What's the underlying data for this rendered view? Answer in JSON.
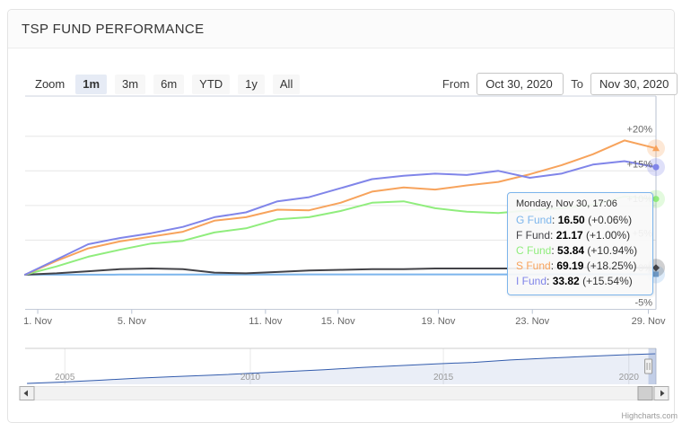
{
  "header": {
    "title": "TSP FUND PERFORMANCE"
  },
  "range_selector": {
    "zoom_label": "Zoom",
    "buttons": [
      {
        "label": "1m",
        "selected": true
      },
      {
        "label": "3m",
        "selected": false
      },
      {
        "label": "6m",
        "selected": false
      },
      {
        "label": "YTD",
        "selected": false
      },
      {
        "label": "1y",
        "selected": false
      },
      {
        "label": "All",
        "selected": false
      }
    ],
    "from_label": "From",
    "from_value": "Oct 30, 2020",
    "to_label": "To",
    "to_value": "Nov 30, 2020"
  },
  "tooltip": {
    "header": "Monday, Nov 30, 17:06",
    "rows": [
      {
        "label": "G Fund",
        "value": "16.50",
        "change": "(+0.06%)",
        "color": "#7cb5ec"
      },
      {
        "label": "F Fund",
        "value": "21.17",
        "change": "(+1.00%)",
        "color": "#434348"
      },
      {
        "label": "C Fund",
        "value": "53.84",
        "change": "(+10.94%)",
        "color": "#90ed7d"
      },
      {
        "label": "S Fund",
        "value": "69.19",
        "change": "(+18.25%)",
        "color": "#f7a35c"
      },
      {
        "label": "I Fund",
        "value": "33.82",
        "change": "(+15.54%)",
        "color": "#8085e9"
      }
    ]
  },
  "chart_data": {
    "type": "line",
    "title": "TSP FUND PERFORMANCE",
    "xlabel": "",
    "ylabel": "",
    "unit": "% change from Oct 30, 2020",
    "grid": true,
    "legend": "none (values shown in tooltip)",
    "ylim": [
      -5,
      25.8
    ],
    "x": [
      "Oct 30",
      "Nov 2",
      "Nov 3",
      "Nov 4",
      "Nov 5",
      "Nov 6",
      "Nov 9",
      "Nov 10",
      "Nov 11",
      "Nov 12",
      "Nov 13",
      "Nov 16",
      "Nov 17",
      "Nov 18",
      "Nov 19",
      "Nov 20",
      "Nov 23",
      "Nov 24",
      "Nov 25",
      "Nov 27",
      "Nov 30"
    ],
    "series": [
      {
        "name": "G Fund",
        "color": "#7cb5ec",
        "marker": "square",
        "last_price": 16.5,
        "last_change_pct": 0.06,
        "values": [
          0,
          0.01,
          0.01,
          0.02,
          0.02,
          0.02,
          0.03,
          0.03,
          0.03,
          0.04,
          0.04,
          0.04,
          0.05,
          0.05,
          0.05,
          0.05,
          0.05,
          0.06,
          0.06,
          0.06,
          0.06
        ]
      },
      {
        "name": "F Fund",
        "color": "#434348",
        "marker": "diamond",
        "last_price": 21.17,
        "last_change_pct": 1.0,
        "values": [
          0,
          0.2,
          0.5,
          0.8,
          0.9,
          0.8,
          0.3,
          0.2,
          0.4,
          0.6,
          0.7,
          0.8,
          0.8,
          0.9,
          0.9,
          0.9,
          0.9,
          1.0,
          1.0,
          1.0,
          1.0
        ]
      },
      {
        "name": "C Fund",
        "color": "#90ed7d",
        "marker": "circle",
        "last_price": 53.84,
        "last_change_pct": 10.94,
        "values": [
          0,
          1.2,
          2.6,
          3.6,
          4.5,
          4.9,
          6.1,
          6.7,
          8.0,
          8.3,
          9.2,
          10.4,
          10.6,
          9.6,
          9.1,
          8.9,
          9.3,
          9.6,
          10.1,
          11.3,
          10.94
        ]
      },
      {
        "name": "S Fund",
        "color": "#f7a35c",
        "marker": "triangle",
        "last_price": 69.19,
        "last_change_pct": 18.25,
        "values": [
          0,
          2.0,
          3.8,
          4.8,
          5.5,
          6.2,
          7.8,
          8.3,
          9.4,
          9.3,
          10.4,
          12.0,
          12.6,
          12.3,
          12.9,
          13.4,
          14.5,
          15.8,
          17.4,
          19.4,
          18.25
        ]
      },
      {
        "name": "I Fund",
        "color": "#8085e9",
        "marker": "circle",
        "last_price": 33.82,
        "last_change_pct": 15.54,
        "values": [
          0,
          2.2,
          4.4,
          5.3,
          6.0,
          6.9,
          8.3,
          9.0,
          10.6,
          11.2,
          12.5,
          13.8,
          14.3,
          14.6,
          14.4,
          15.0,
          14.0,
          14.6,
          15.9,
          16.4,
          15.54
        ]
      }
    ],
    "yticks": [
      {
        "label": "-5%",
        "value": -5
      },
      {
        "label": "0%",
        "value": 0
      },
      {
        "label": "+5%",
        "value": 5
      },
      {
        "label": "+10%",
        "value": 10
      },
      {
        "label": "+15%",
        "value": 15
      },
      {
        "label": "+20%",
        "value": 20
      }
    ],
    "xticks": [
      {
        "label": "1. Nov",
        "pos": 0.02
      },
      {
        "label": "5. Nov",
        "pos": 0.169
      },
      {
        "label": "11. Nov",
        "pos": 0.381
      },
      {
        "label": "15. Nov",
        "pos": 0.496
      },
      {
        "label": "19. Nov",
        "pos": 0.655
      },
      {
        "label": "23. Nov",
        "pos": 0.804
      },
      {
        "label": "29. Nov",
        "pos": 0.988
      }
    ],
    "navigator": {
      "type": "area",
      "line_color": "#335cad",
      "points": [
        [
          2004,
          0
        ],
        [
          2005,
          0.05
        ],
        [
          2006,
          0.11
        ],
        [
          2007,
          0.18
        ],
        [
          2008,
          0.23
        ],
        [
          2009,
          0.28
        ],
        [
          2010,
          0.34
        ],
        [
          2011,
          0.4
        ],
        [
          2012,
          0.46
        ],
        [
          2013,
          0.54
        ],
        [
          2014,
          0.6
        ],
        [
          2015,
          0.66
        ],
        [
          2016,
          0.71
        ],
        [
          2017,
          0.79
        ],
        [
          2018,
          0.85
        ],
        [
          2019,
          0.91
        ],
        [
          2020,
          0.96
        ],
        [
          2020.9,
          1.0
        ]
      ],
      "year_ticks": [
        {
          "label": "2005",
          "pos": 0.063
        },
        {
          "label": "2010",
          "pos": 0.357
        },
        {
          "label": "2015",
          "pos": 0.663
        },
        {
          "label": "2020",
          "pos": 0.957
        }
      ],
      "selected_range_pos": [
        0.988,
        1.0
      ]
    }
  },
  "credits": "Highcharts.com"
}
